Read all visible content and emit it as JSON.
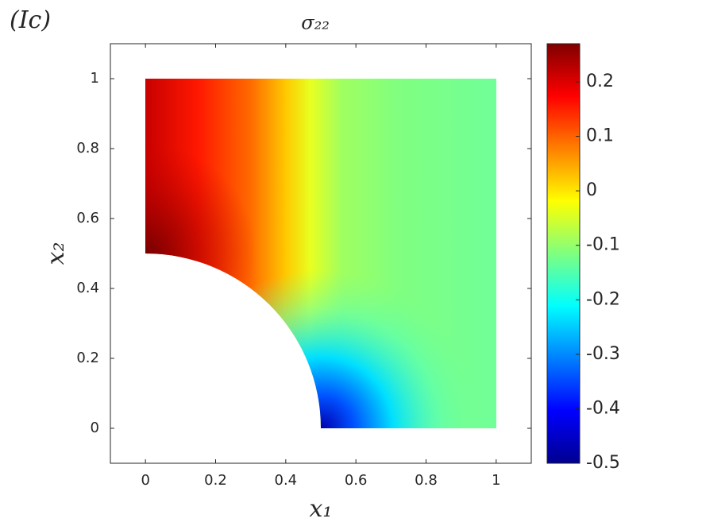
{
  "panel_label": "(Ic)",
  "chart_data": {
    "type": "field",
    "title": "σ₂₂",
    "xlabel": "x₁",
    "ylabel": "x₂",
    "xlim": [
      -0.1,
      1.1
    ],
    "xticks": [
      0,
      0.2,
      0.4,
      0.6,
      0.8,
      1
    ],
    "ylim": [
      -0.1,
      1.1
    ],
    "yticks": [
      0,
      0.2,
      0.4,
      0.6,
      0.8,
      1
    ],
    "colormap": "jet",
    "clim": [
      -0.5,
      0.27
    ],
    "cticks": [
      -0.5,
      -0.4,
      -0.3,
      -0.2,
      -0.1,
      0,
      0.1,
      0.2
    ]
  }
}
